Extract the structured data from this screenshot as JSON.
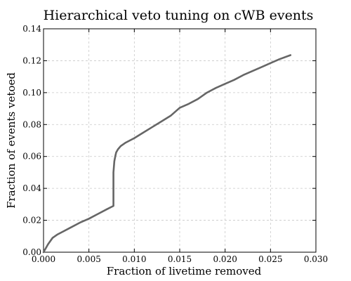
{
  "chart_data": {
    "type": "line",
    "title": "Hierarchical veto tuning on cWB events",
    "xlabel": "Fraction of livetime removed",
    "ylabel": "Fraction of events vetoed",
    "xlim": [
      0.0,
      0.03
    ],
    "ylim": [
      0.0,
      0.14
    ],
    "x_ticks": [
      "0.000",
      "0.005",
      "0.010",
      "0.015",
      "0.020",
      "0.025",
      "0.030"
    ],
    "y_ticks": [
      "0.00",
      "0.02",
      "0.04",
      "0.06",
      "0.08",
      "0.10",
      "0.12",
      "0.14"
    ],
    "grid": true,
    "series": [
      {
        "color": "#666666",
        "x": [
          0.0,
          0.0005,
          0.001,
          0.0015,
          0.002,
          0.003,
          0.004,
          0.005,
          0.006,
          0.007,
          0.0077,
          0.0077,
          0.0078,
          0.0079,
          0.008,
          0.0082,
          0.0085,
          0.009,
          0.0095,
          0.01,
          0.011,
          0.012,
          0.013,
          0.014,
          0.015,
          0.016,
          0.017,
          0.018,
          0.019,
          0.02,
          0.021,
          0.022,
          0.023,
          0.024,
          0.025,
          0.026,
          0.0272
        ],
        "y": [
          0.0,
          0.005,
          0.009,
          0.011,
          0.0125,
          0.0155,
          0.0185,
          0.021,
          0.024,
          0.027,
          0.029,
          0.05,
          0.057,
          0.06,
          0.0625,
          0.0645,
          0.0665,
          0.0685,
          0.07,
          0.0715,
          0.075,
          0.0785,
          0.082,
          0.0855,
          0.0905,
          0.093,
          0.096,
          0.1,
          0.103,
          0.1055,
          0.108,
          0.111,
          0.1135,
          0.116,
          0.1185,
          0.121,
          0.1235
        ]
      }
    ]
  }
}
